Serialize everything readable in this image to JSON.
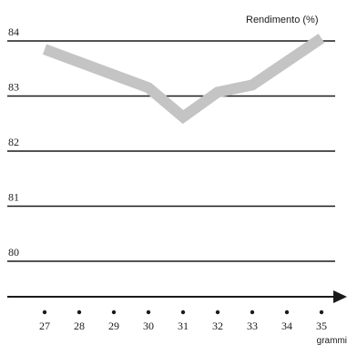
{
  "chart_data": {
    "type": "line",
    "title": "",
    "ylabel": "Rendimento (%)",
    "xlabel": "grammi",
    "x": [
      27,
      28,
      29,
      30,
      31,
      32,
      33,
      34,
      35
    ],
    "ylim": [
      79.5,
      84.2
    ],
    "yticks": [
      84,
      83,
      82,
      81,
      80
    ],
    "ytick_labels": [
      "84",
      "83",
      "82",
      "81",
      "80"
    ],
    "xtick_labels": [
      "27",
      "28",
      "29",
      "30",
      "31",
      "32",
      "33",
      "34",
      "35"
    ],
    "series": [
      {
        "name": "",
        "x": [
          27,
          30,
          31,
          32,
          33,
          35
        ],
        "values": [
          83.85,
          83.15,
          82.62,
          83.07,
          83.2,
          84.05
        ],
        "color": "#c4c4c4"
      }
    ],
    "grid": "horizontal",
    "legend": "none"
  }
}
